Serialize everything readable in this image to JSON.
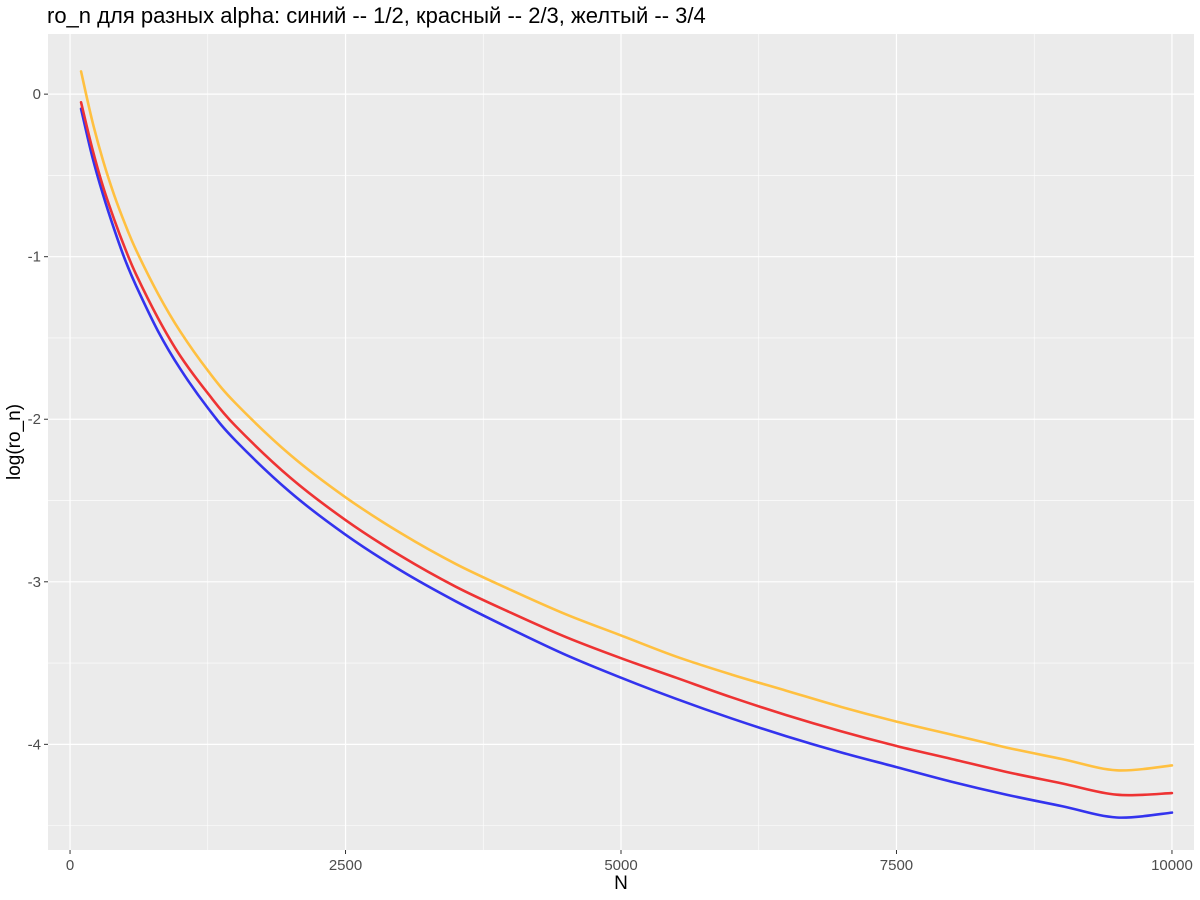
{
  "chart_data": {
    "type": "line",
    "title": "ro_n для разных alpha: синий -- 1/2, красный -- 2/3, желтый -- 3/4",
    "xlabel": "N",
    "ylabel": "log(ro_n)",
    "xlim": [
      -200,
      10200
    ],
    "ylim": [
      -4.65,
      0.37
    ],
    "x_ticks": [
      0,
      2500,
      5000,
      7500,
      10000
    ],
    "x_tick_labels": [
      "0",
      "2500",
      "5000",
      "7500",
      "10000"
    ],
    "y_ticks": [
      0,
      -1,
      -2,
      -3,
      -4
    ],
    "y_tick_labels": [
      "0",
      "-1",
      "-2",
      "-3",
      "-4"
    ],
    "background": "#ebebeb",
    "grid": true,
    "legend": "none",
    "series": [
      {
        "color": "#3333ee",
        "x": [
          100,
          200,
          300,
          400,
          500,
          600,
          800,
          1000,
          1250,
          1500,
          2000,
          2500,
          3000,
          3500,
          4000,
          4500,
          5000,
          5500,
          6000,
          6500,
          7000,
          7500,
          8000,
          8500,
          9000,
          9500,
          10000
        ],
        "y": [
          -0.09,
          -0.38,
          -0.62,
          -0.83,
          -1.02,
          -1.18,
          -1.46,
          -1.69,
          -1.93,
          -2.13,
          -2.45,
          -2.71,
          -2.93,
          -3.12,
          -3.29,
          -3.45,
          -3.59,
          -3.72,
          -3.84,
          -3.95,
          -4.05,
          -4.14,
          -4.23,
          -4.31,
          -4.38,
          -4.45,
          -4.42
        ]
      },
      {
        "color": "#ee3333",
        "x": [
          100,
          200,
          300,
          400,
          500,
          600,
          800,
          1000,
          1250,
          1500,
          2000,
          2500,
          3000,
          3500,
          4000,
          4500,
          5000,
          5500,
          6000,
          6500,
          7000,
          7500,
          8000,
          8500,
          9000,
          9500,
          10000
        ],
        "y": [
          -0.05,
          -0.33,
          -0.57,
          -0.77,
          -0.95,
          -1.11,
          -1.38,
          -1.61,
          -1.84,
          -2.04,
          -2.36,
          -2.62,
          -2.84,
          -3.03,
          -3.19,
          -3.34,
          -3.47,
          -3.59,
          -3.71,
          -3.82,
          -3.92,
          -4.01,
          -4.09,
          -4.17,
          -4.24,
          -4.31,
          -4.3
        ]
      },
      {
        "color": "#ffc040",
        "x": [
          100,
          200,
          300,
          400,
          500,
          600,
          800,
          1000,
          1250,
          1500,
          2000,
          2500,
          3000,
          3500,
          4000,
          4500,
          5000,
          5500,
          6000,
          6500,
          7000,
          7500,
          8000,
          8500,
          9000,
          9500,
          10000
        ],
        "y": [
          0.14,
          -0.16,
          -0.41,
          -0.62,
          -0.8,
          -0.96,
          -1.23,
          -1.46,
          -1.7,
          -1.9,
          -2.22,
          -2.48,
          -2.7,
          -2.89,
          -3.05,
          -3.2,
          -3.33,
          -3.46,
          -3.57,
          -3.67,
          -3.77,
          -3.86,
          -3.94,
          -4.02,
          -4.09,
          -4.16,
          -4.13
        ]
      }
    ]
  }
}
